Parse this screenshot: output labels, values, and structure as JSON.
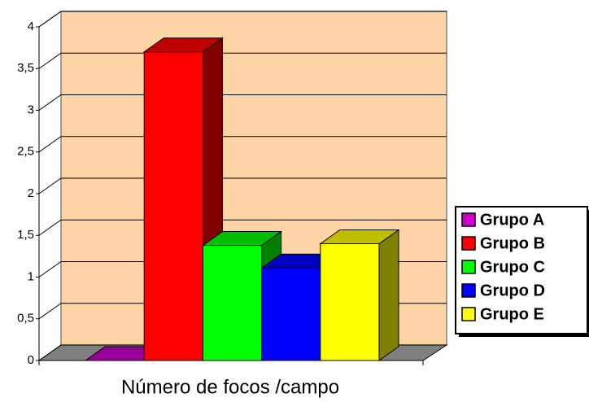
{
  "chart_data": {
    "type": "bar3d",
    "categories": [
      "Número de focos /campo"
    ],
    "series": [
      {
        "name": "Grupo A",
        "color": "#cc00cc",
        "values": [
          0
        ]
      },
      {
        "name": "Grupo B",
        "color": "#ff0000",
        "values": [
          3.7
        ]
      },
      {
        "name": "Grupo C",
        "color": "#00ff00",
        "values": [
          1.38
        ]
      },
      {
        "name": "Grupo D",
        "color": "#0000ff",
        "values": [
          1.11
        ]
      },
      {
        "name": "Grupo E",
        "color": "#ffff00",
        "values": [
          1.4
        ]
      }
    ],
    "ylim": [
      0,
      4
    ],
    "yticks": [
      0,
      {
        "value": 0.5,
        "label": "0,5"
      },
      1,
      {
        "value": 1.5,
        "label": "1,5"
      },
      2,
      {
        "value": 2.5,
        "label": "2,5"
      },
      3,
      {
        "value": 3.5,
        "label": "3,5"
      },
      4
    ],
    "grid": true,
    "legend": "right"
  }
}
